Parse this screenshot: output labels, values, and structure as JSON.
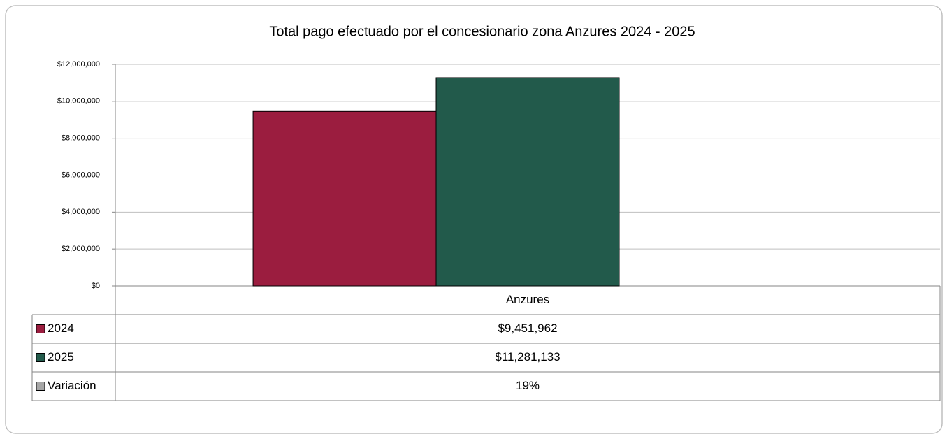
{
  "chart_data": {
    "type": "bar",
    "title": "Total pago efectuado por el concesionario zona Anzures 2024 - 2025",
    "categories": [
      "Anzures"
    ],
    "series": [
      {
        "name": "2024",
        "color": "#9b1d3f",
        "values": [
          9451962
        ],
        "value_labels": [
          "$9,451,962"
        ]
      },
      {
        "name": "2025",
        "color": "#225a4b",
        "values": [
          11281133
        ],
        "value_labels": [
          "$11,281,133"
        ]
      }
    ],
    "variation": {
      "name": "Variación",
      "color": "#a6a6a6",
      "values": [
        19
      ],
      "value_labels": [
        "19%"
      ]
    },
    "ylim": [
      0,
      12000000
    ],
    "yticks": [
      {
        "value": 0,
        "label": "$0"
      },
      {
        "value": 2000000,
        "label": "$2,000,000"
      },
      {
        "value": 4000000,
        "label": "$4,000,000"
      },
      {
        "value": 6000000,
        "label": "$6,000,000"
      },
      {
        "value": 8000000,
        "label": "$8,000,000"
      },
      {
        "value": 10000000,
        "label": "$10,000,000"
      },
      {
        "value": 12000000,
        "label": "$12,000,000"
      }
    ],
    "grid": true
  }
}
